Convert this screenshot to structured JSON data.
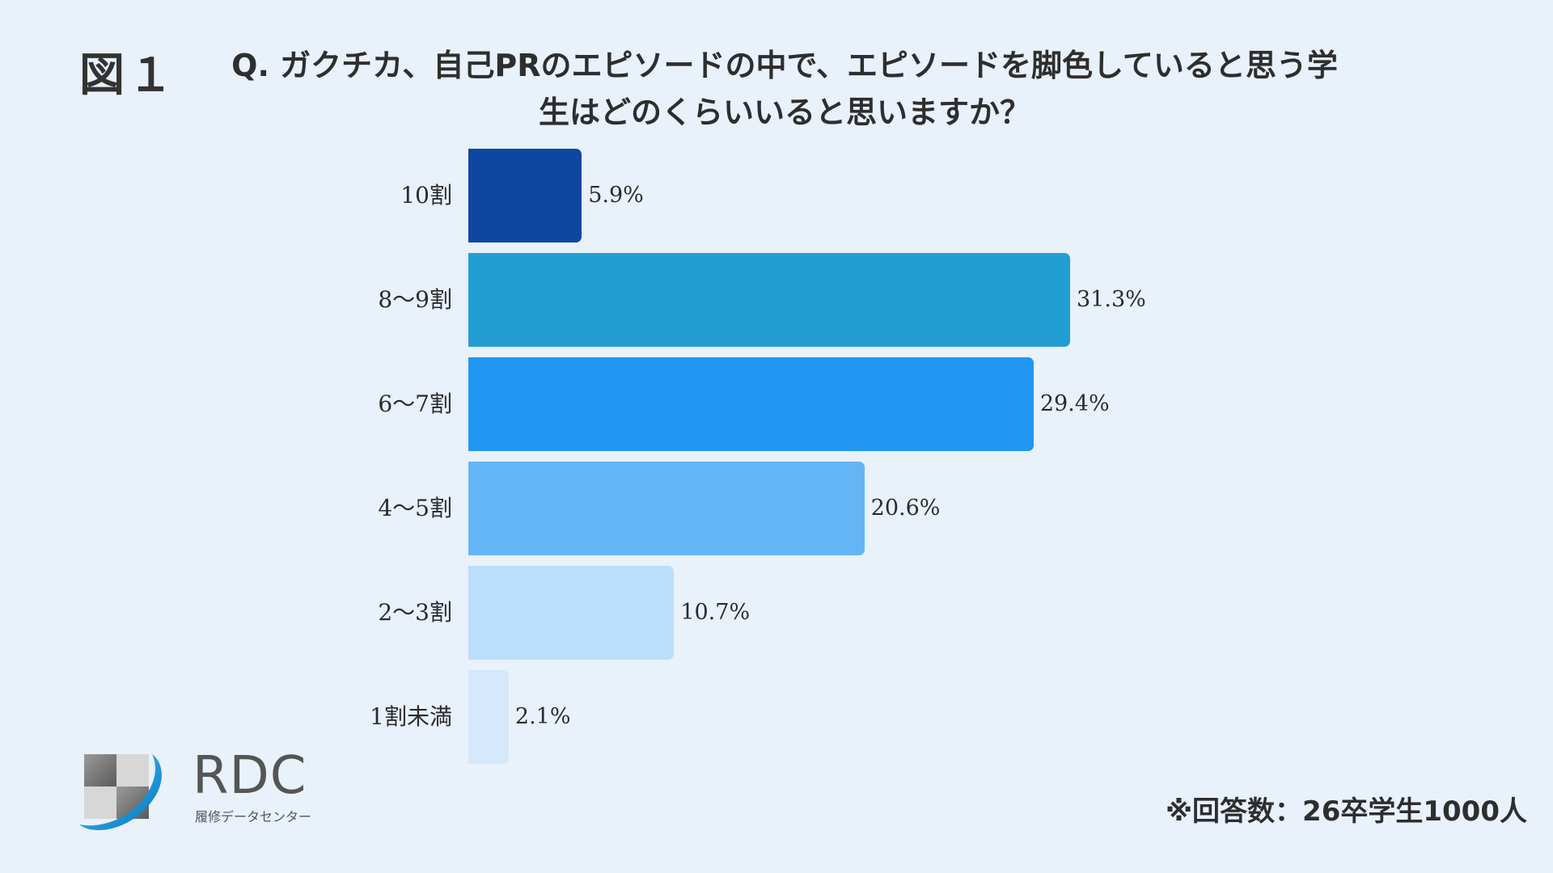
{
  "figure_label": "図１",
  "note": "※回答数：26卒学生1000人",
  "logo": {
    "name": "RDC",
    "sub": "履修データセンター",
    "icon": "rdc-logo-icon"
  },
  "chart_data": {
    "type": "bar",
    "orientation": "horizontal",
    "title": "Q. ガクチカ、自己PRのエピソードの中で、エピソードを脚色していると思う学生はどのくらいいると思いますか？",
    "title_lines": [
      "Q. ガクチカ、自己PRのエピソードの中で、エピソードを脚色していると思う学",
      "生はどのくらいいると思いますか？"
    ],
    "categories": [
      "10割",
      "8～9割",
      "6～7割",
      "4～5割",
      "2～3割",
      "1割未満"
    ],
    "values": [
      5.9,
      31.3,
      29.4,
      20.6,
      10.7,
      2.1
    ],
    "value_labels": [
      "5.9%",
      "31.3%",
      "29.4%",
      "20.6%",
      "10.7%",
      "2.1%"
    ],
    "colors": [
      "#0d47a1",
      "#229ed3",
      "#2196f3",
      "#64b5f6",
      "#bbdefb",
      "#d6e8fb"
    ],
    "xlim": [
      0,
      31.3
    ],
    "unit": "%",
    "grid": false,
    "legend": "none"
  }
}
